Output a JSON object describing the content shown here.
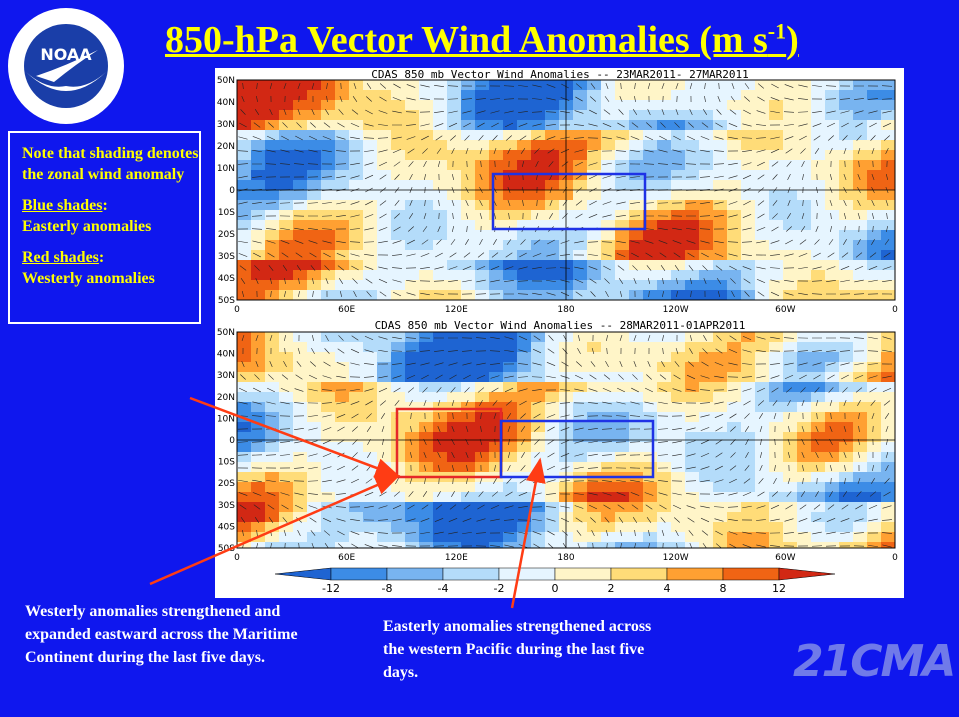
{
  "logo": {
    "text": "NOAA"
  },
  "title": {
    "main": "850-hPa Vector Wind Anomalies  (m s",
    "exp": "-1",
    "end": ")"
  },
  "note": {
    "line1": "Note that shading denotes the zonal wind anomaly",
    "blue_label": "Blue shades",
    "blue_text": "Easterly anomalies",
    "red_label": "Red shades",
    "red_text": "Westerly anomalies"
  },
  "panel_top": {
    "title": "CDAS 850 mb Vector Wind Anomalies -- 23MAR2011- 27MAR2011"
  },
  "panel_bottom": {
    "title": "CDAS 850 mb Vector Wind Anomalies -- 28MAR2011-01APR2011"
  },
  "lat_ticks": [
    "50N",
    "40N",
    "30N",
    "20N",
    "10N",
    "0",
    "10S",
    "20S",
    "30S",
    "40S",
    "50S"
  ],
  "lon_ticks": [
    "0",
    "60E",
    "120E",
    "180",
    "120W",
    "60W",
    "0"
  ],
  "colorbar": {
    "ticks": [
      "-12",
      "-8",
      "-4",
      "-2",
      "0",
      "2",
      "4",
      "8",
      "12"
    ],
    "colors": [
      "#1e64d2",
      "#3c8ce6",
      "#78b4f0",
      "#b4dcfa",
      "#e6f5ff",
      "#fff5c8",
      "#ffdc78",
      "#ffa032",
      "#f06414",
      "#d22814"
    ]
  },
  "captions": {
    "west": "Westerly anomalies strengthened and expanded eastward across the Maritime Continent during the last five days.",
    "east": "Easterly anomalies strengthened across the western Pacific during the last five days."
  },
  "watermark": "21CMA",
  "colors": {
    "background": "#0f17ee",
    "title": "#ffff00",
    "caption": "#ffffff",
    "red_arrow": "#ff3c14"
  }
}
